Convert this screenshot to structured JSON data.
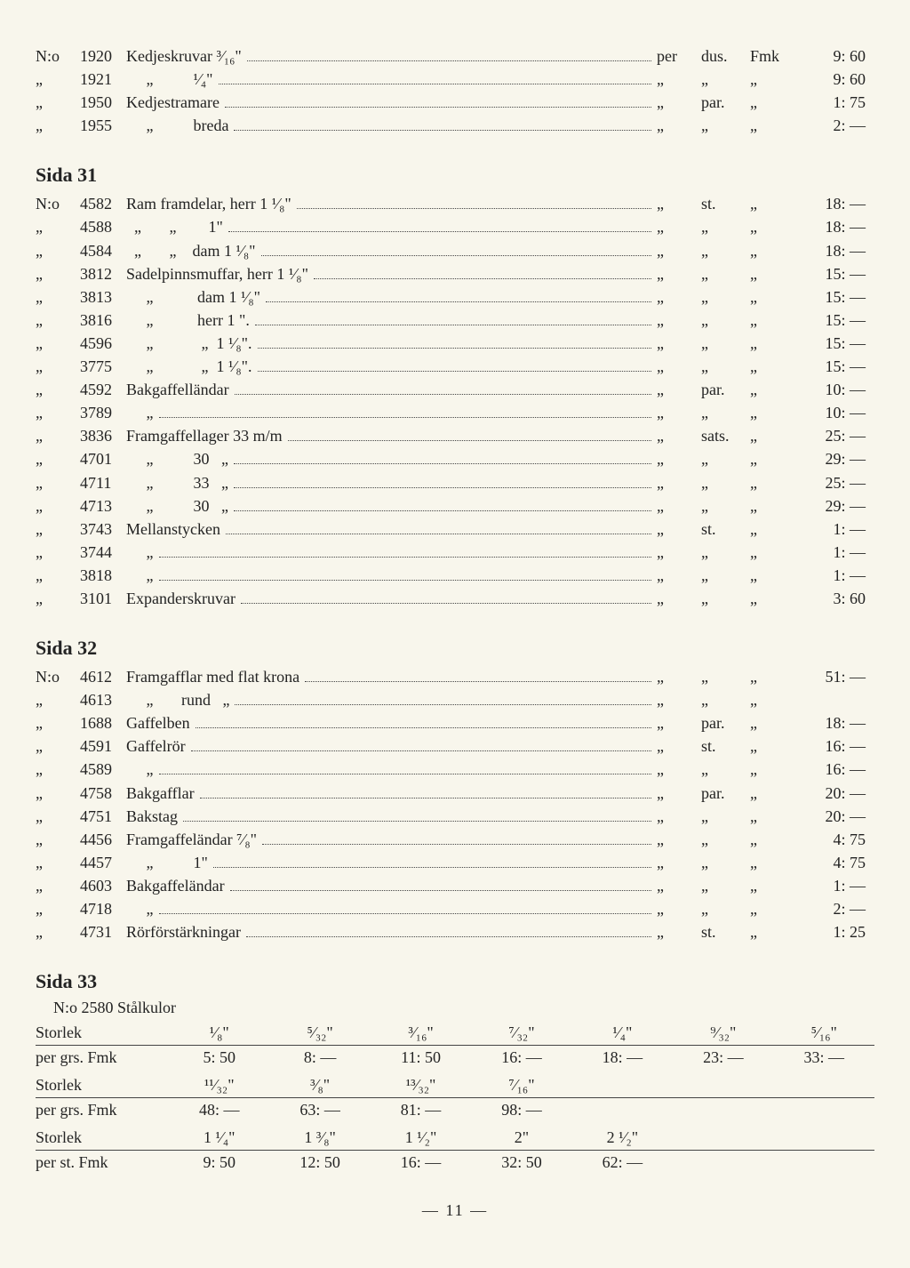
{
  "page_number": "— 11 —",
  "top_rows": [
    {
      "no": "N:o",
      "num": "1920",
      "desc": "Kedjeskruvar ³⁄₁₆\"",
      "u1": "per",
      "u2": "dus.",
      "u3": "Fmk",
      "price": "9: 60"
    },
    {
      "no": "„",
      "num": "1921",
      "desc": "     „          ¹⁄₄\"",
      "u1": "„",
      "u2": "„",
      "u3": "„",
      "price": "9: 60"
    },
    {
      "no": "„",
      "num": "1950",
      "desc": "Kedjestramare",
      "u1": "„",
      "u2": "par.",
      "u3": "„",
      "price": "1: 75"
    },
    {
      "no": "„",
      "num": "1955",
      "desc": "     „          breda",
      "u1": "„",
      "u2": "„",
      "u3": "„",
      "price": "2: —"
    }
  ],
  "sida31_title": "Sida 31",
  "sida31_rows": [
    {
      "no": "N:o",
      "num": "4582",
      "desc": "Ram framdelar, herr 1 ¹⁄₈\"",
      "u1": "„",
      "u2": "st.",
      "u3": "„",
      "price": "18: —"
    },
    {
      "no": "„",
      "num": "4588",
      "desc": "  „       „        1\"",
      "u1": "„",
      "u2": "„",
      "u3": "„",
      "price": "18: —"
    },
    {
      "no": "„",
      "num": "4584",
      "desc": "  „       „    dam 1 ¹⁄₈\"",
      "u1": "„",
      "u2": "„",
      "u3": "„",
      "price": "18: —"
    },
    {
      "no": "„",
      "num": "3812",
      "desc": "Sadelpinnsmuffar, herr 1 ¹⁄₈\"",
      "u1": "„",
      "u2": "„",
      "u3": "„",
      "price": "15: —"
    },
    {
      "no": "„",
      "num": "3813",
      "desc": "     „           dam 1 ¹⁄₈\"",
      "u1": "„",
      "u2": "„",
      "u3": "„",
      "price": "15: —"
    },
    {
      "no": "„",
      "num": "3816",
      "desc": "     „           herr 1 \".",
      "u1": "„",
      "u2": "„",
      "u3": "„",
      "price": "15: —"
    },
    {
      "no": "„",
      "num": "4596",
      "desc": "     „            „  1 ¹⁄₈\".",
      "u1": "„",
      "u2": "„",
      "u3": "„",
      "price": "15: —"
    },
    {
      "no": "„",
      "num": "3775",
      "desc": "     „            „  1 ¹⁄₈\".",
      "u1": "„",
      "u2": "„",
      "u3": "„",
      "price": "15: —"
    },
    {
      "no": "„",
      "num": "4592",
      "desc": "Bakgaffelländar",
      "u1": "„",
      "u2": "par.",
      "u3": "„",
      "price": "10: —"
    },
    {
      "no": "„",
      "num": "3789",
      "desc": "     „",
      "u1": "„",
      "u2": "„",
      "u3": "„",
      "price": "10: —"
    },
    {
      "no": "„",
      "num": "3836",
      "desc": "Framgaffellager 33 m/m",
      "u1": "„",
      "u2": "sats.",
      "u3": "„",
      "price": "25: —"
    },
    {
      "no": "„",
      "num": "4701",
      "desc": "     „          30   „",
      "u1": "„",
      "u2": "„",
      "u3": "„",
      "price": "29: —"
    },
    {
      "no": "„",
      "num": "4711",
      "desc": "     „          33   „",
      "u1": "„",
      "u2": "„",
      "u3": "„",
      "price": "25: —"
    },
    {
      "no": "„",
      "num": "4713",
      "desc": "     „          30   „",
      "u1": "„",
      "u2": "„",
      "u3": "„",
      "price": "29: —"
    },
    {
      "no": "„",
      "num": "3743",
      "desc": "Mellanstycken",
      "u1": "„",
      "u2": "st.",
      "u3": "„",
      "price": "1: —"
    },
    {
      "no": "„",
      "num": "3744",
      "desc": "     „",
      "u1": "„",
      "u2": "„",
      "u3": "„",
      "price": "1: —"
    },
    {
      "no": "„",
      "num": "3818",
      "desc": "     „",
      "u1": "„",
      "u2": "„",
      "u3": "„",
      "price": "1: —"
    },
    {
      "no": "„",
      "num": "3101",
      "desc": "Expanderskruvar",
      "u1": "„",
      "u2": "„",
      "u3": "„",
      "price": "3: 60"
    }
  ],
  "sida32_title": "Sida 32",
  "sida32_rows": [
    {
      "no": "N:o",
      "num": "4612",
      "desc": "Framgafflar med flat krona",
      "u1": "„",
      "u2": "„",
      "u3": "„",
      "price": "51: —"
    },
    {
      "no": "„",
      "num": "4613",
      "desc": "     „       rund   „",
      "u1": "„",
      "u2": "„",
      "u3": "„",
      "price": ""
    },
    {
      "no": "„",
      "num": "1688",
      "desc": "Gaffelben",
      "u1": "„",
      "u2": "par.",
      "u3": "„",
      "price": "18: —"
    },
    {
      "no": "„",
      "num": "4591",
      "desc": "Gaffelrör",
      "u1": "„",
      "u2": "st.",
      "u3": "„",
      "price": "16: —"
    },
    {
      "no": "„",
      "num": "4589",
      "desc": "     „",
      "u1": "„",
      "u2": "„",
      "u3": "„",
      "price": "16: —"
    },
    {
      "no": "„",
      "num": "4758",
      "desc": "Bakgafflar",
      "u1": "„",
      "u2": "par.",
      "u3": "„",
      "price": "20: —"
    },
    {
      "no": "„",
      "num": "4751",
      "desc": "Bakstag",
      "u1": "„",
      "u2": "„",
      "u3": "„",
      "price": "20: —"
    },
    {
      "no": "„",
      "num": "4456",
      "desc": "Framgaffeländar ⁷⁄₈\"",
      "u1": "„",
      "u2": "„",
      "u3": "„",
      "price": "4: 75"
    },
    {
      "no": "„",
      "num": "4457",
      "desc": "     „          1\"",
      "u1": "„",
      "u2": "„",
      "u3": "„",
      "price": "4: 75"
    },
    {
      "no": "„",
      "num": "4603",
      "desc": "Bakgaffeländar",
      "u1": "„",
      "u2": "„",
      "u3": "„",
      "price": "1: —"
    },
    {
      "no": "„",
      "num": "4718",
      "desc": "     „",
      "u1": "„",
      "u2": "„",
      "u3": "„",
      "price": "2: —"
    },
    {
      "no": "„",
      "num": "4731",
      "desc": "Rörförstärkningar",
      "u1": "„",
      "u2": "st.",
      "u3": "„",
      "price": "1: 25"
    }
  ],
  "sida33_title": "Sida 33",
  "sida33_header": "N:o 2580 Stålkulor",
  "table1": {
    "label_size": "Storlek",
    "label_price": "per grs. Fmk",
    "sizes": [
      "¹⁄₈\"",
      "⁵⁄₃₂\"",
      "³⁄₁₆\"",
      "⁷⁄₃₂\"",
      "¹⁄₄\"",
      "⁹⁄₃₂\"",
      "⁵⁄₁₆\""
    ],
    "prices": [
      "5: 50",
      "8: —",
      "11: 50",
      "16: —",
      "18: —",
      "23: —",
      "33: —"
    ]
  },
  "table2": {
    "label_size": "Storlek",
    "label_price": "per grs. Fmk",
    "sizes": [
      "¹¹⁄₃₂\"",
      "³⁄₈\"",
      "¹³⁄₃₂\"",
      "⁷⁄₁₆\"",
      "",
      "",
      ""
    ],
    "prices": [
      "48: —",
      "63: —",
      "81: —",
      "98: —",
      "",
      "",
      ""
    ]
  },
  "table3": {
    "label_size": "Storlek",
    "label_price": "per st. Fmk",
    "sizes": [
      "1 ¹⁄₄\"",
      "1 ³⁄₈\"",
      "1 ¹⁄₂\"",
      "2\"",
      "2 ¹⁄₂\"",
      "",
      ""
    ],
    "prices": [
      "9: 50",
      "12: 50",
      "16: —",
      "32: 50",
      "62: —",
      "",
      ""
    ]
  }
}
